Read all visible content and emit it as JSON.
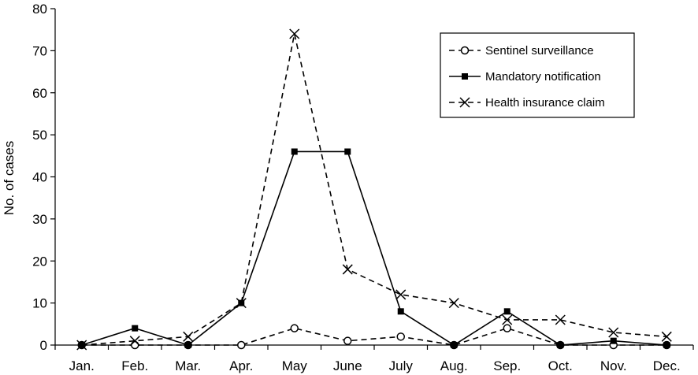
{
  "chart_data": {
    "type": "line",
    "title": "",
    "xlabel": "",
    "ylabel": "No. of cases",
    "ylim": [
      0,
      80
    ],
    "yticks": [
      0,
      10,
      20,
      30,
      40,
      50,
      60,
      70,
      80
    ],
    "grid": false,
    "legend_position": "top-right",
    "categories": [
      "Jan.",
      "Feb.",
      "Mar.",
      "Apr.",
      "May",
      "June",
      "July",
      "Aug.",
      "Sep.",
      "Oct.",
      "Nov.",
      "Dec."
    ],
    "series": [
      {
        "name": "Sentinel surveillance",
        "line_style": "dashed",
        "marker": "open-circle",
        "color": "#000000",
        "values": [
          0,
          0,
          0,
          0,
          4,
          1,
          2,
          0,
          4,
          0,
          0,
          0
        ]
      },
      {
        "name": "Mandatory notification",
        "line_style": "solid",
        "marker": "filled-square",
        "color": "#000000",
        "values": [
          0,
          4,
          0,
          10,
          46,
          46,
          8,
          0,
          8,
          0,
          1,
          0
        ]
      },
      {
        "name": "Health insurance claim",
        "line_style": "dashed",
        "marker": "x",
        "color": "#000000",
        "values": [
          0,
          1,
          2,
          10,
          74,
          18,
          12,
          10,
          6,
          6,
          3,
          2
        ]
      }
    ]
  }
}
